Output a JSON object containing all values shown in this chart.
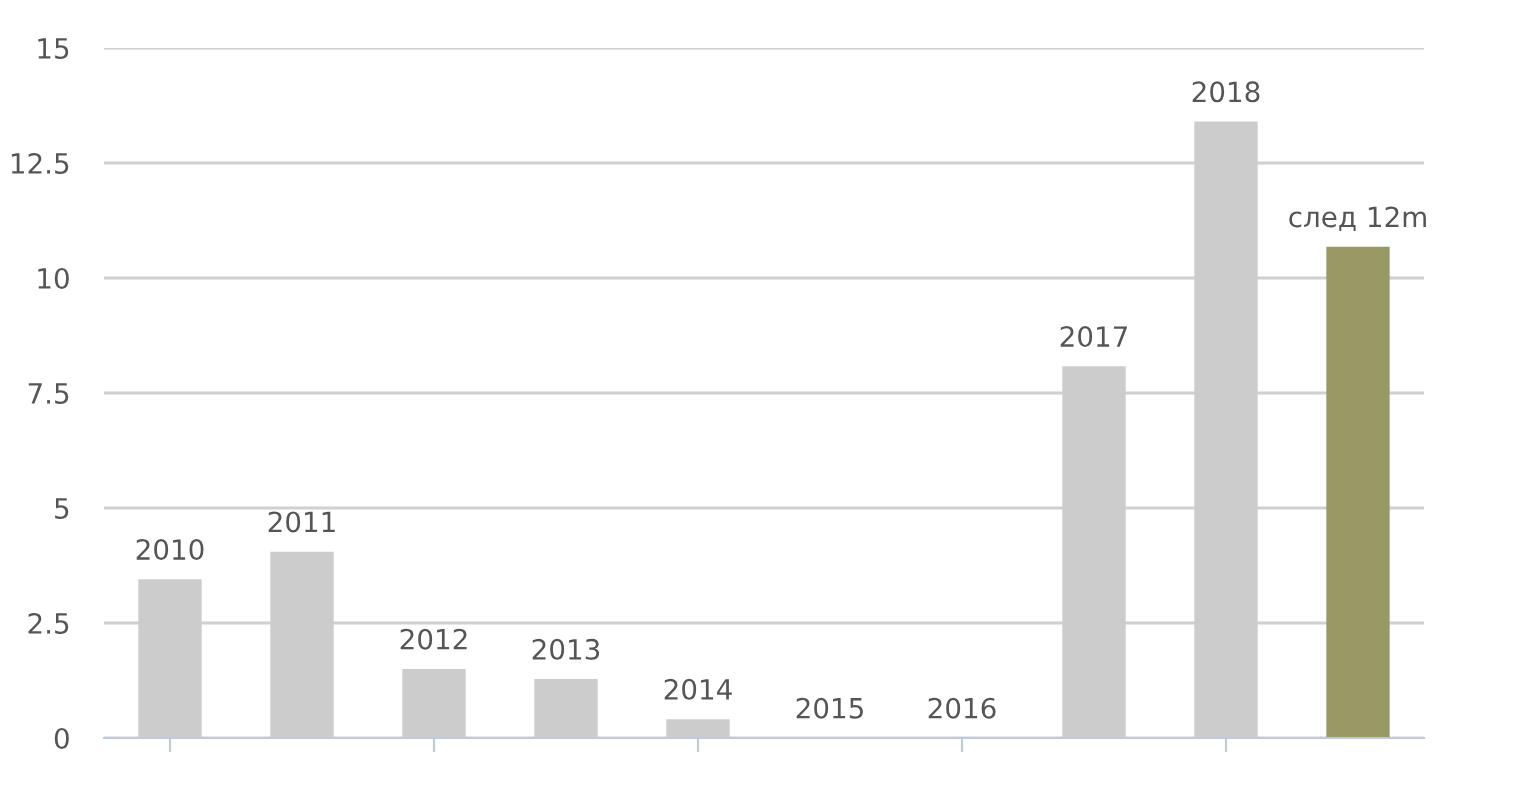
{
  "chart_data": {
    "type": "bar",
    "categories": [
      "2010",
      "2011",
      "2012",
      "2013",
      "2014",
      "2015",
      "2016",
      "2017",
      "2018",
      "след 12m"
    ],
    "values": [
      3.45,
      4.05,
      1.5,
      1.28,
      0.41,
      0,
      0,
      8.08,
      13.4,
      10.68
    ],
    "colors": [
      "#cccccc",
      "#cccccc",
      "#cccccc",
      "#cccccc",
      "#cccccc",
      "#cccccc",
      "#cccccc",
      "#cccccc",
      "#cccccc",
      "#999966"
    ],
    "ylim": [
      0,
      15
    ],
    "yticks": [
      0,
      2.5,
      5,
      7.5,
      10,
      12.5,
      15
    ],
    "grid": "y",
    "legend": false
  }
}
